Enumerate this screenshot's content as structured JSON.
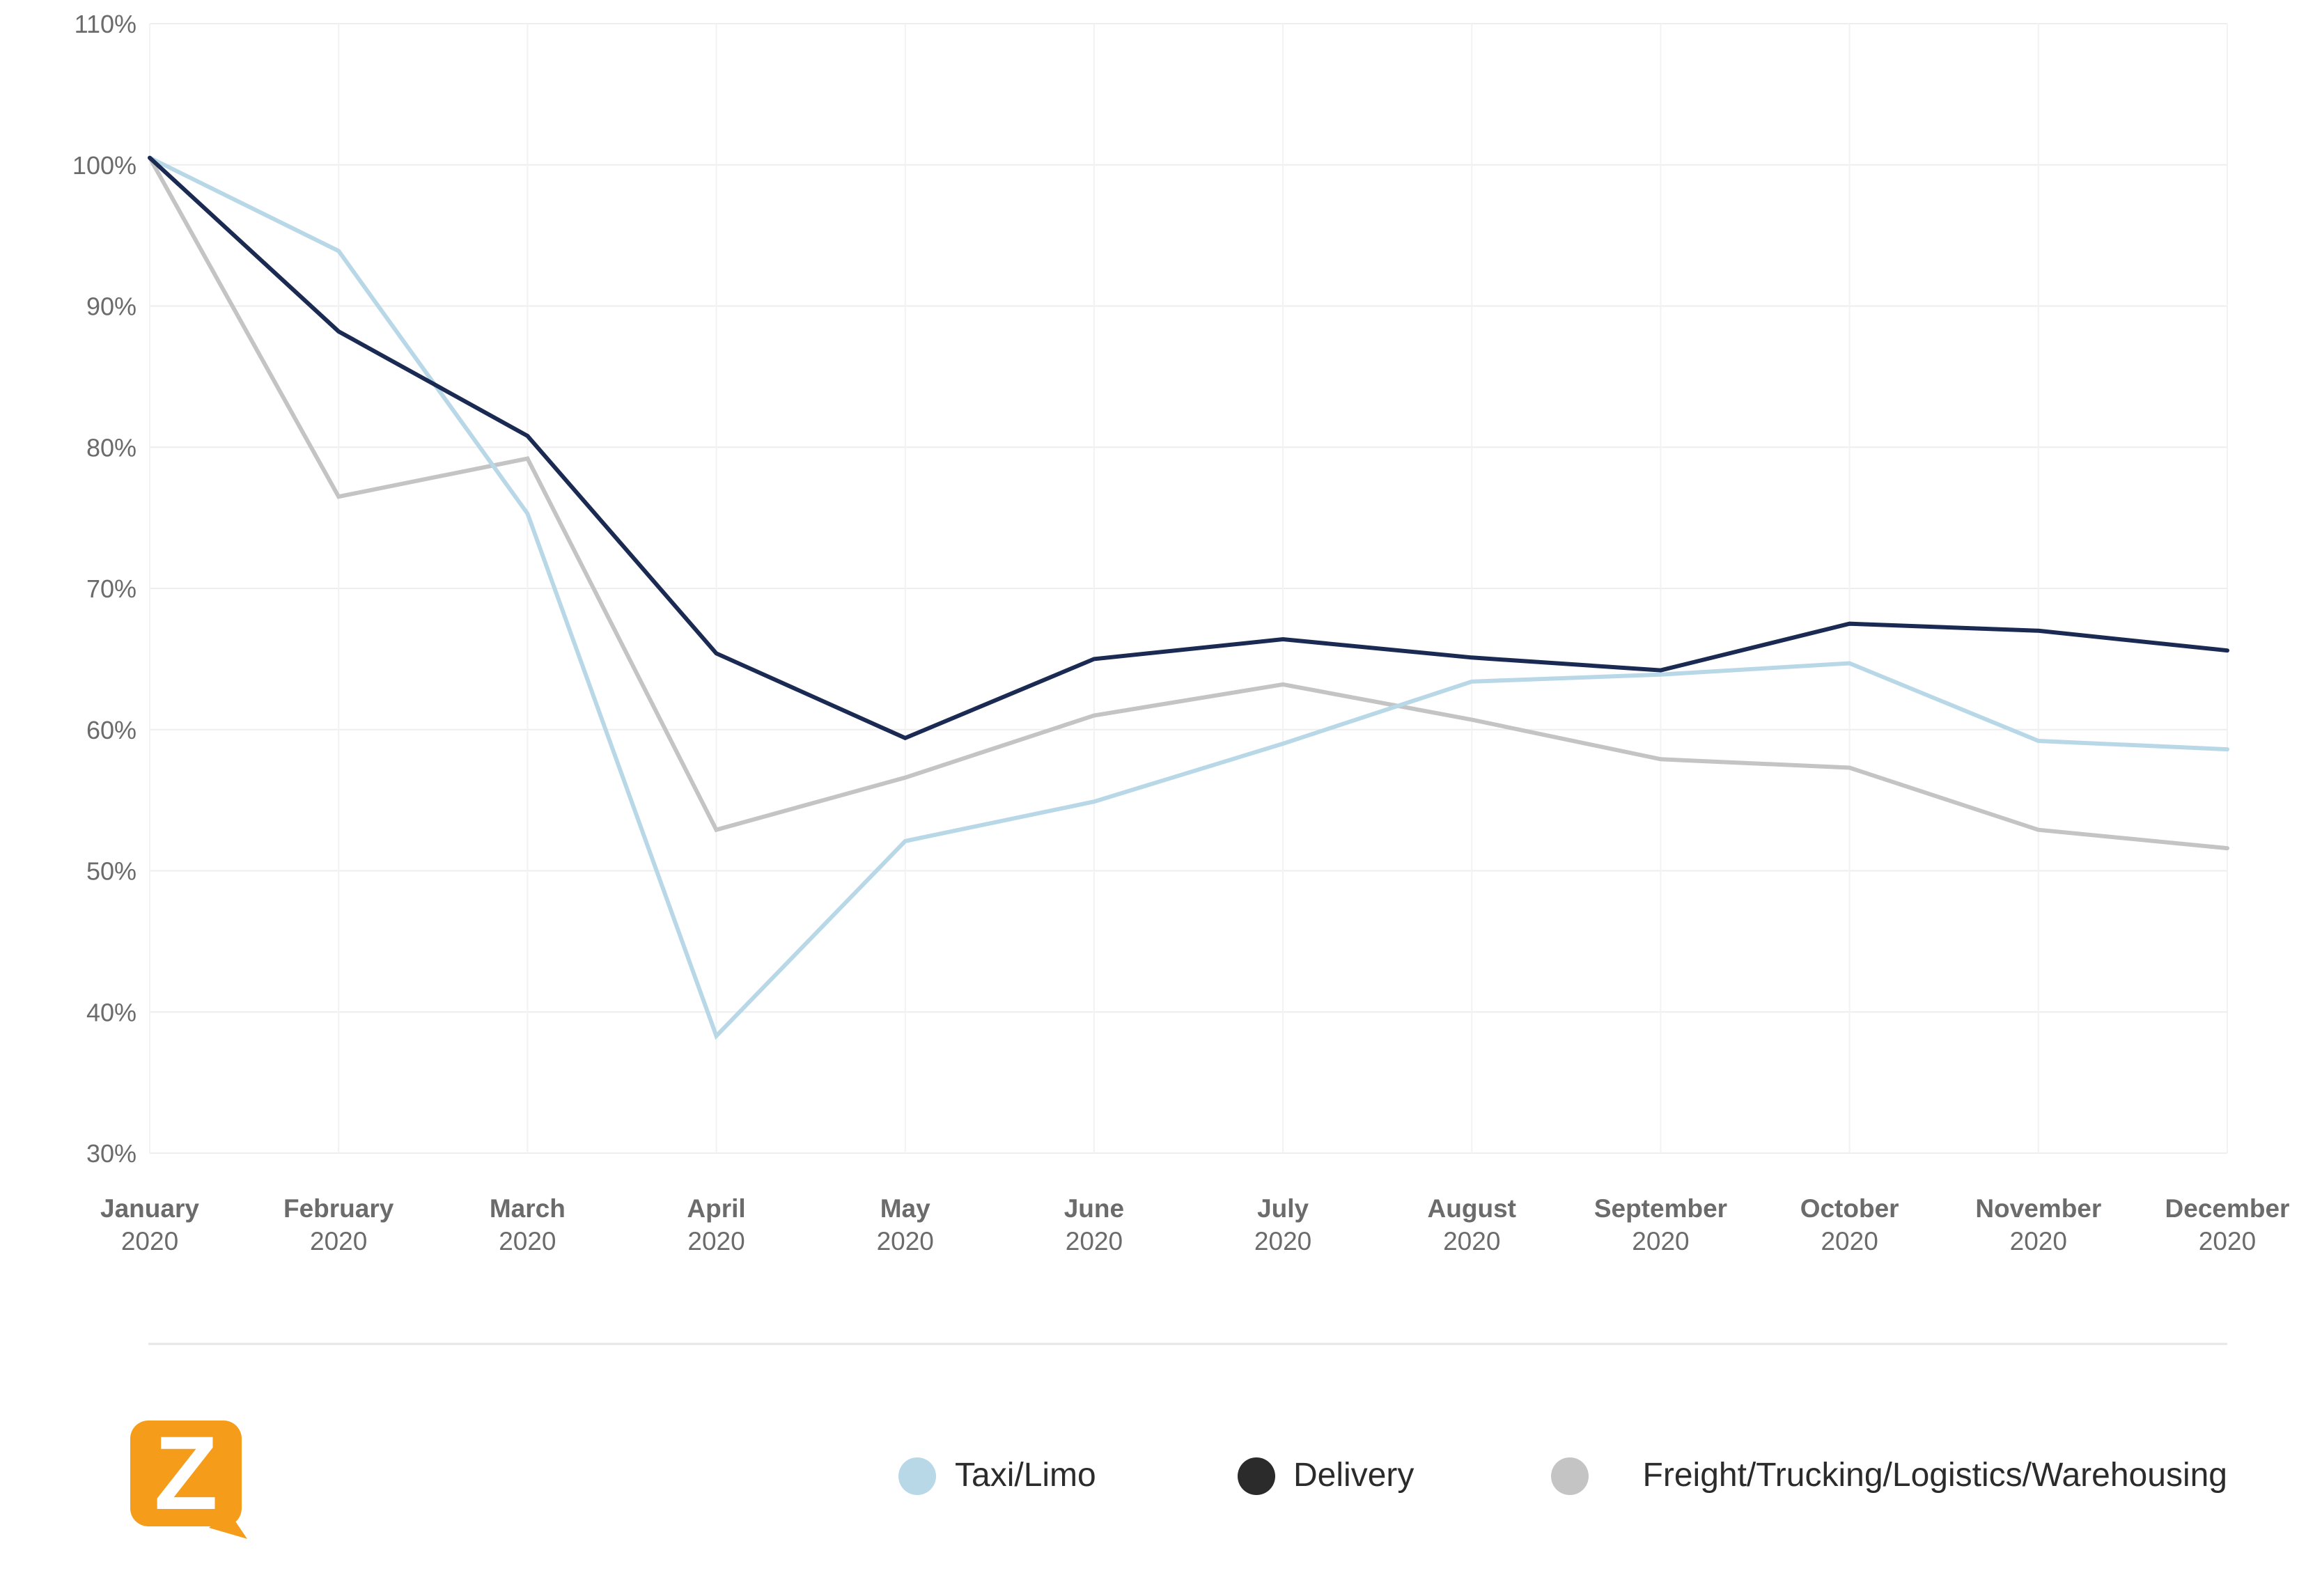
{
  "chart_data": {
    "type": "line",
    "categories": [
      {
        "month": "January",
        "year": "2020"
      },
      {
        "month": "February",
        "year": "2020"
      },
      {
        "month": "March",
        "year": "2020"
      },
      {
        "month": "April",
        "year": "2020"
      },
      {
        "month": "May",
        "year": "2020"
      },
      {
        "month": "June",
        "year": "2020"
      },
      {
        "month": "July",
        "year": "2020"
      },
      {
        "month": "August",
        "year": "2020"
      },
      {
        "month": "September",
        "year": "2020"
      },
      {
        "month": "October",
        "year": "2020"
      },
      {
        "month": "November",
        "year": "2020"
      },
      {
        "month": "December",
        "year": "2020"
      }
    ],
    "series": [
      {
        "name": "Taxi/Limo",
        "color": "#b8d8e8",
        "values": [
          100.5,
          93.9,
          75.3,
          38.3,
          52.1,
          54.9,
          59.0,
          63.4,
          63.9,
          64.7,
          59.2,
          58.6
        ]
      },
      {
        "name": "Delivery",
        "color": "#1a2a52",
        "values": [
          100.5,
          88.2,
          80.8,
          65.4,
          59.4,
          65.0,
          66.4,
          65.1,
          64.2,
          67.5,
          67.0,
          65.6
        ]
      },
      {
        "name": "Freight/Trucking/Logistics/Warehousing",
        "color": "#c4c4c4",
        "values": [
          100.5,
          76.5,
          79.2,
          52.9,
          56.6,
          61.0,
          63.2,
          60.7,
          57.9,
          57.3,
          52.9,
          51.6
        ]
      }
    ],
    "y_ticks": [
      "110%",
      "100%",
      "90%",
      "80%",
      "70%",
      "60%",
      "50%",
      "40%",
      "30%"
    ],
    "ylim": [
      30,
      110
    ],
    "grid": true,
    "legend_position": "bottom-right",
    "legend_marker_colors": [
      "#b8d8e8",
      "#2b2b2b",
      "#c4c4c4"
    ],
    "title": "",
    "xlabel": "",
    "ylabel": ""
  },
  "logo": {
    "icon": "zoom-logo-icon",
    "text": "Z",
    "color": "#f59c1a"
  }
}
